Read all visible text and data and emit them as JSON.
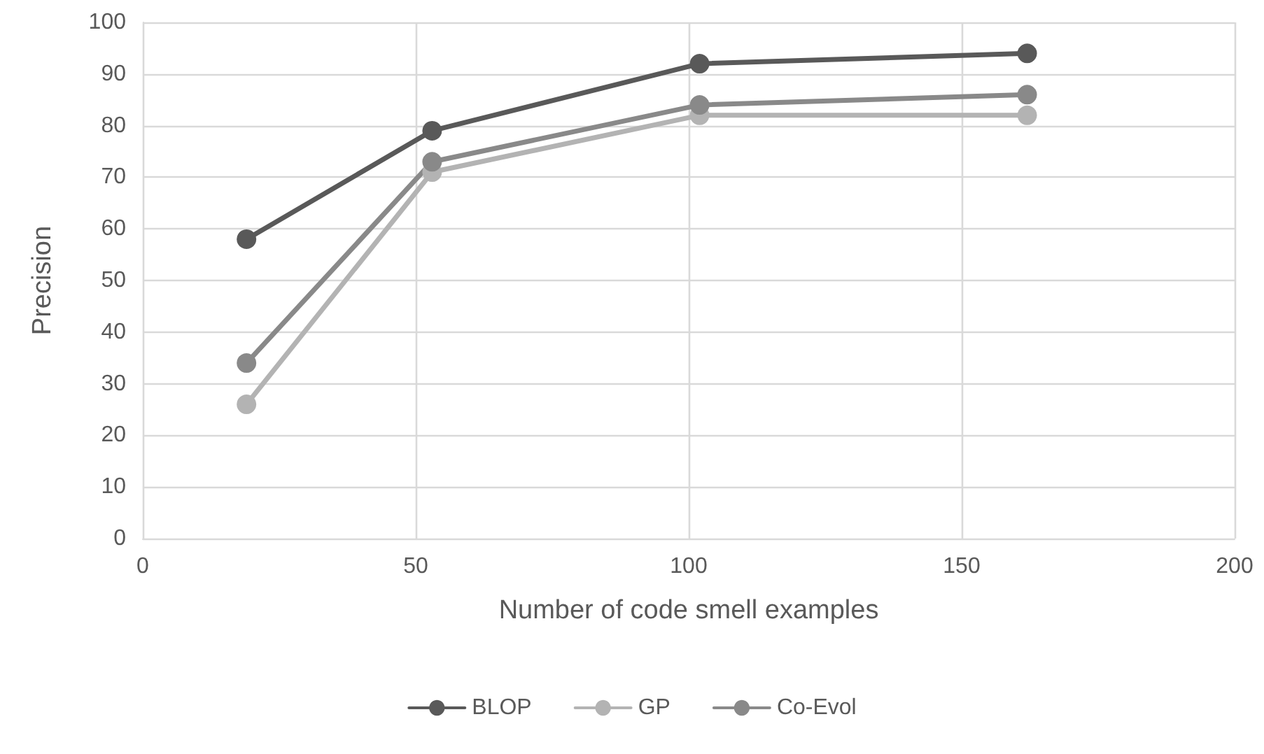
{
  "chart_data": {
    "type": "line",
    "xlabel": "Number of code smell examples",
    "ylabel": "Precision",
    "x": [
      19,
      53,
      102,
      162
    ],
    "series": [
      {
        "name": "BLOP",
        "color": "#595959",
        "values": [
          58,
          79,
          92,
          94
        ]
      },
      {
        "name": "GP",
        "color": "#b3b3b3",
        "values": [
          26,
          71,
          82,
          82
        ]
      },
      {
        "name": "Co-Evol",
        "color": "#898989",
        "values": [
          34,
          73,
          84,
          86
        ]
      }
    ],
    "xlim": [
      0,
      200
    ],
    "xticks": [
      0,
      50,
      100,
      150,
      200
    ],
    "ylim": [
      0,
      100
    ],
    "yticks": [
      0,
      10,
      20,
      30,
      40,
      50,
      60,
      70,
      80,
      90,
      100
    ],
    "grid": true,
    "legend": "bottom",
    "marker": "circle",
    "line_style": "solid"
  }
}
